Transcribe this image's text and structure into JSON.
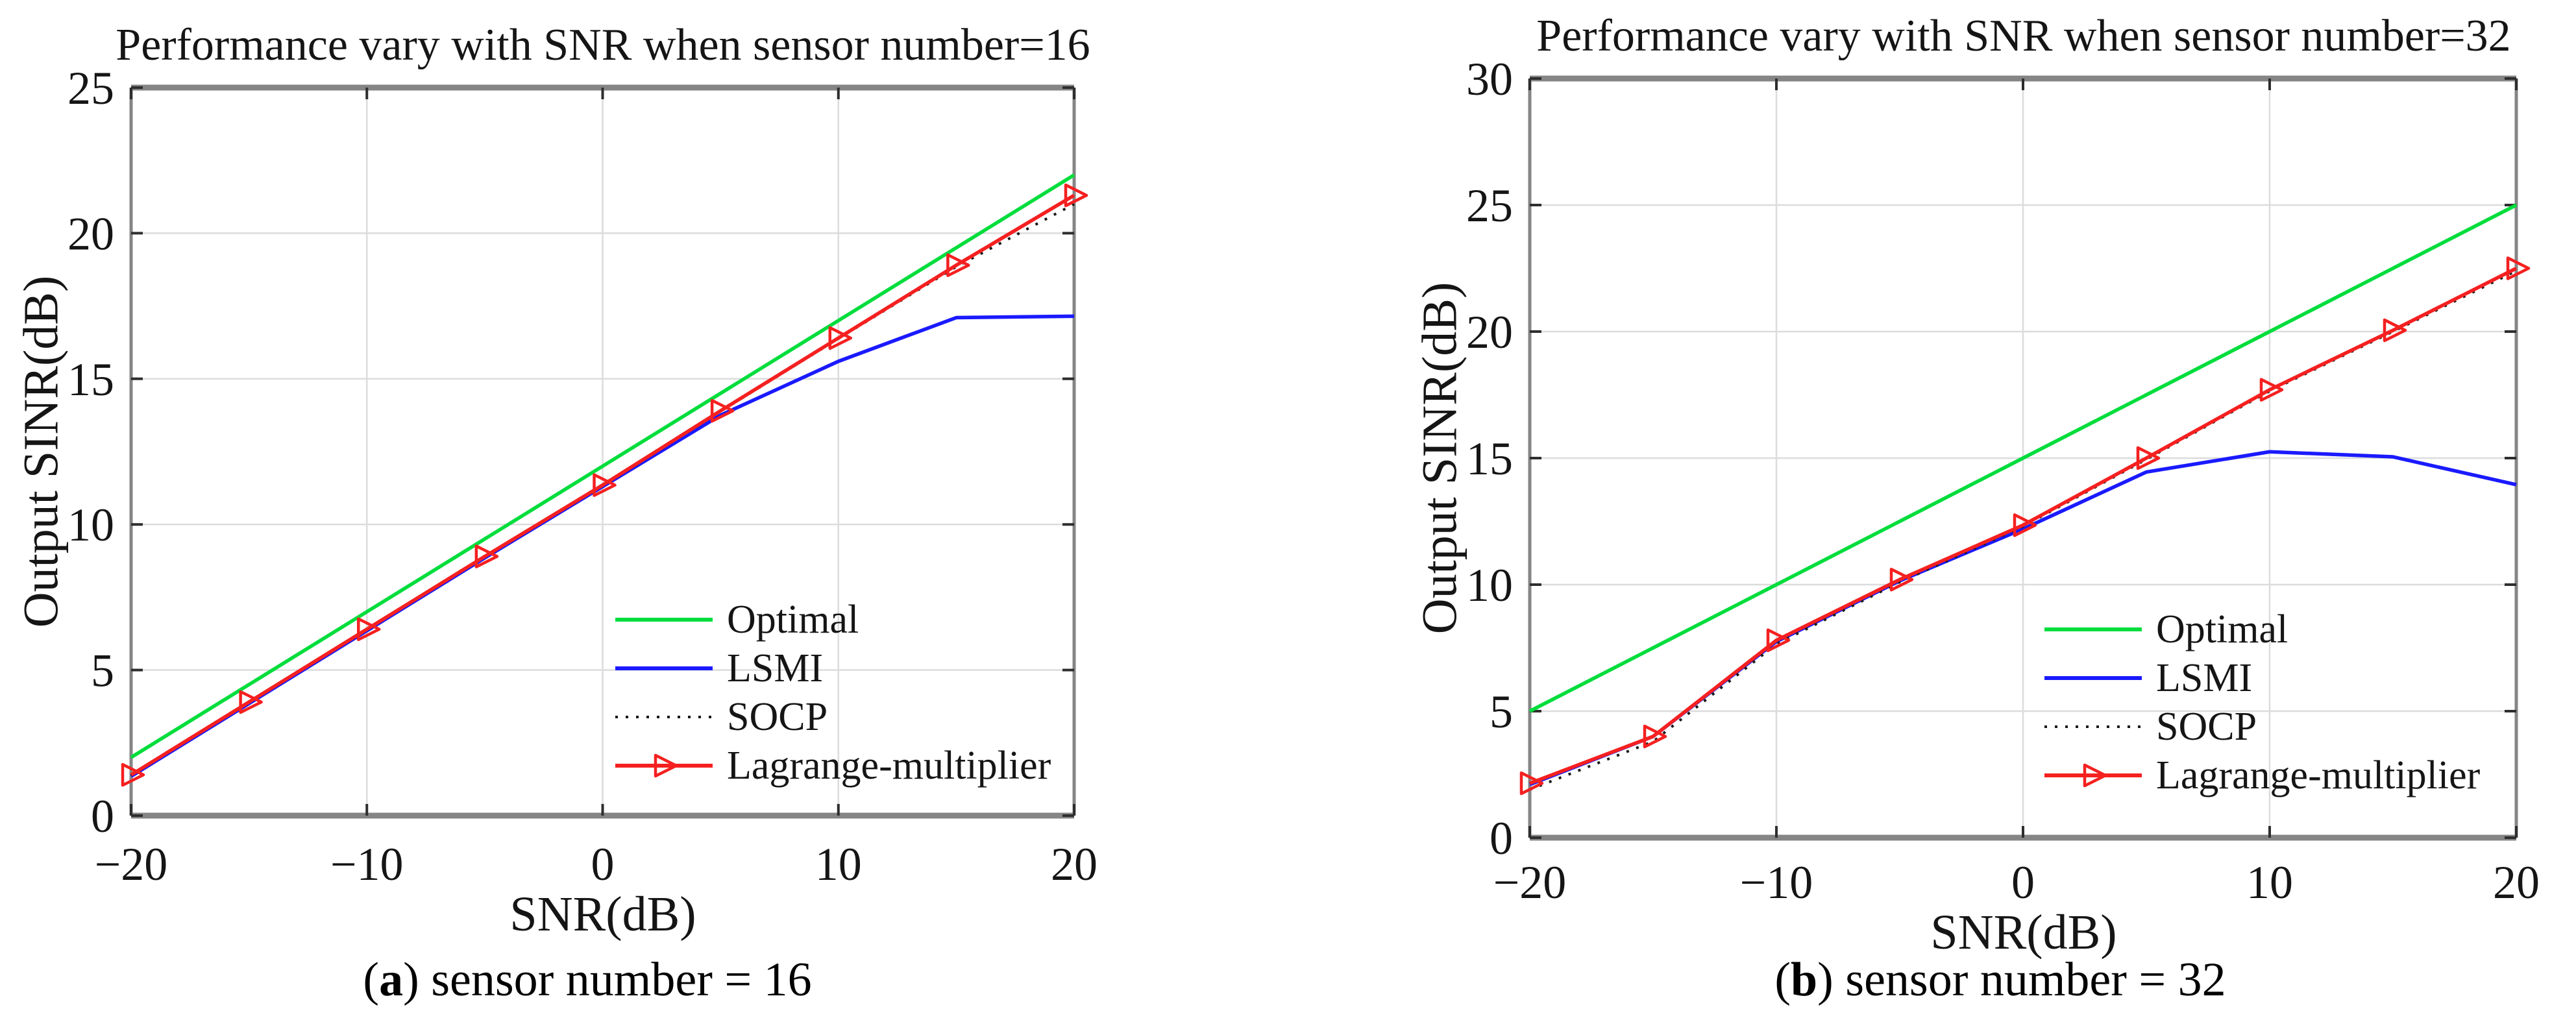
{
  "chart_data": [
    {
      "type": "line",
      "title": "Performance vary with SNR when sensor number=16",
      "xlabel": "SNR(dB)",
      "ylabel": "Output SINR(dB)",
      "xlim": [
        -20,
        20
      ],
      "ylim": [
        0,
        25
      ],
      "grid": true,
      "legend_position": "inside lower right",
      "x_ticks": [
        -20,
        -10,
        0,
        10,
        20
      ],
      "x_tick_labels": [
        "−20",
        "−10",
        "0",
        "10",
        "20"
      ],
      "y_ticks": [
        0,
        5,
        10,
        15,
        20,
        25
      ],
      "y_tick_labels": [
        "0",
        "5",
        "10",
        "15",
        "20",
        "25"
      ],
      "x": [
        -20,
        -15,
        -10,
        -5,
        0,
        5,
        10,
        15,
        20
      ],
      "series": [
        {
          "name": "Optimal",
          "color": "#00dd3c",
          "style": "solid",
          "marker": "none",
          "values": [
            2.0,
            4.5,
            7.0,
            9.5,
            12.0,
            14.5,
            17.0,
            19.5,
            22.0
          ]
        },
        {
          "name": "LSMI",
          "color": "#1a1aff",
          "style": "solid",
          "marker": "none",
          "values": [
            1.35,
            3.85,
            6.35,
            8.85,
            11.3,
            13.75,
            15.6,
            17.1,
            17.15
          ]
        },
        {
          "name": "SOCP",
          "color": "#1a1a1a",
          "style": "dotted",
          "marker": "none",
          "values": [
            1.38,
            3.88,
            6.38,
            8.88,
            11.32,
            13.88,
            16.38,
            18.85,
            21.0
          ]
        },
        {
          "name": "Lagrange-multiplier",
          "color": "#f52020",
          "style": "solid",
          "marker": "triangle-right",
          "values": [
            1.4,
            3.9,
            6.4,
            8.9,
            11.35,
            13.9,
            16.4,
            18.9,
            21.3
          ]
        }
      ],
      "caption": {
        "pre": "(",
        "letter": "a",
        "post": ") sensor number = 16"
      }
    },
    {
      "type": "line",
      "title": "Performance vary with SNR when sensor number=32",
      "xlabel": "SNR(dB)",
      "ylabel": "Output SINR(dB)",
      "xlim": [
        -20,
        20
      ],
      "ylim": [
        0,
        30
      ],
      "grid": true,
      "legend_position": "inside lower right",
      "x_ticks": [
        -20,
        -10,
        0,
        10,
        20
      ],
      "x_tick_labels": [
        "−20",
        "−10",
        "0",
        "10",
        "20"
      ],
      "y_ticks": [
        0,
        5,
        10,
        15,
        20,
        25,
        30
      ],
      "y_tick_labels": [
        "0",
        "5",
        "10",
        "15",
        "20",
        "25",
        "30"
      ],
      "x": [
        -20,
        -15,
        -10,
        -5,
        0,
        5,
        10,
        15,
        20
      ],
      "series": [
        {
          "name": "Optimal",
          "color": "#00dd3c",
          "style": "solid",
          "marker": "none",
          "values": [
            5.0,
            7.5,
            10.0,
            12.5,
            15.0,
            17.5,
            20.0,
            22.5,
            25.0
          ]
        },
        {
          "name": "LSMI",
          "color": "#1a1aff",
          "style": "solid",
          "marker": "none",
          "values": [
            2.1,
            4.0,
            7.75,
            10.15,
            12.2,
            14.45,
            15.25,
            15.05,
            13.95
          ]
        },
        {
          "name": "SOCP",
          "color": "#1a1a1a",
          "style": "dotted",
          "marker": "none",
          "values": [
            1.9,
            3.8,
            7.65,
            10.1,
            12.3,
            14.95,
            17.65,
            20.0,
            22.4
          ]
        },
        {
          "name": "Lagrange-multiplier",
          "color": "#f52020",
          "style": "solid",
          "marker": "triangle-right",
          "values": [
            2.15,
            4.0,
            7.8,
            10.2,
            12.35,
            15.0,
            17.7,
            20.05,
            22.5
          ]
        }
      ],
      "caption": {
        "pre": "(",
        "letter": "b",
        "post": ") sensor number = 32"
      }
    }
  ],
  "colors": {
    "frame": "#858585",
    "gridline": "#dcdcdc",
    "tick": "#2e2e2e",
    "text": "#151515"
  }
}
